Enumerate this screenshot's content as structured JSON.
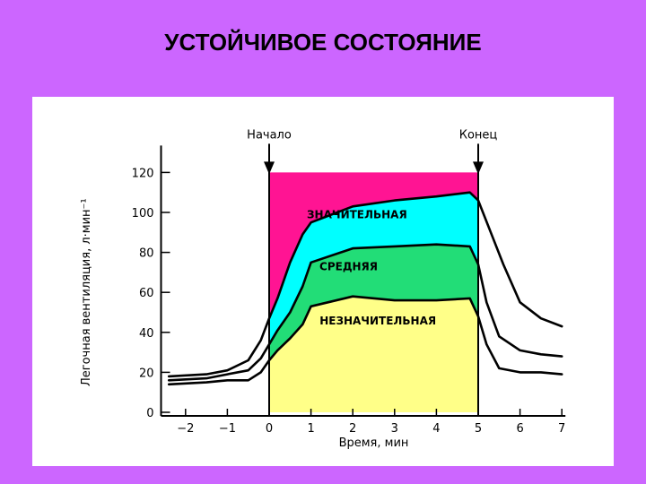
{
  "slide": {
    "title": "УСТОЙЧИВОЕ  СОСТОЯНИЕ"
  },
  "chart_data": {
    "type": "line",
    "title": "",
    "xlabel": "Время, мин",
    "ylabel": "Легочная вентиляция, л·мин⁻¹",
    "xlim": [
      -2.5,
      7
    ],
    "ylim": [
      0,
      120
    ],
    "x_ticks": [
      -2,
      -1,
      0,
      1,
      2,
      3,
      4,
      5,
      6,
      7
    ],
    "x_tick_labels": [
      "−2",
      "−1",
      "0",
      "1",
      "2",
      "3",
      "4",
      "5",
      "6",
      "7"
    ],
    "y_ticks": [
      0,
      20,
      40,
      60,
      80,
      100,
      120
    ],
    "y_tick_labels": [
      "0",
      "20",
      "40",
      "60",
      "80",
      "100",
      "120"
    ],
    "grid": false,
    "markers": [
      {
        "label": "Начало",
        "x": 0
      },
      {
        "label": "Конец",
        "x": 5
      }
    ],
    "zone_labels": [
      {
        "text": "ЗНАЧИТЕЛЬНАЯ",
        "color": "#00ffff"
      },
      {
        "text": "СРЕДНЯЯ",
        "color": "#22dd77"
      },
      {
        "text": "НЕЗНАЧИТЕЛЬНАЯ",
        "color": "#ffff88"
      }
    ],
    "top_fill_color": "#ff1493",
    "series": [
      {
        "x": [
          -2.4,
          -1.5,
          -1,
          -0.5,
          -0.2,
          0,
          0.2,
          0.5,
          0.8,
          1,
          2,
          3,
          4,
          4.8,
          5,
          5.3,
          5.6,
          6,
          6.5,
          7
        ],
        "values": [
          18,
          19,
          21,
          26,
          36,
          47,
          57,
          75,
          89,
          95,
          103,
          106,
          108,
          110,
          106,
          90,
          74,
          55,
          47,
          43
        ]
      },
      {
        "x": [
          -2.4,
          -1.5,
          -1,
          -0.5,
          -0.2,
          0,
          0.2,
          0.5,
          0.8,
          1,
          2,
          3,
          4,
          4.8,
          5,
          5.2,
          5.5,
          6,
          6.5,
          7
        ],
        "values": [
          16,
          17,
          19,
          21,
          27,
          34,
          41,
          50,
          63,
          75,
          82,
          83,
          84,
          83,
          74,
          55,
          38,
          31,
          29,
          28
        ]
      },
      {
        "x": [
          -2.4,
          -1.5,
          -1,
          -0.5,
          -0.2,
          0,
          0.2,
          0.5,
          0.8,
          1,
          2,
          3,
          4,
          4.8,
          5,
          5.2,
          5.5,
          6,
          6.5,
          7
        ],
        "values": [
          14,
          15,
          16,
          16,
          20,
          26,
          31,
          37,
          44,
          53,
          58,
          56,
          56,
          57,
          48,
          34,
          22,
          20,
          20,
          19
        ]
      }
    ]
  }
}
